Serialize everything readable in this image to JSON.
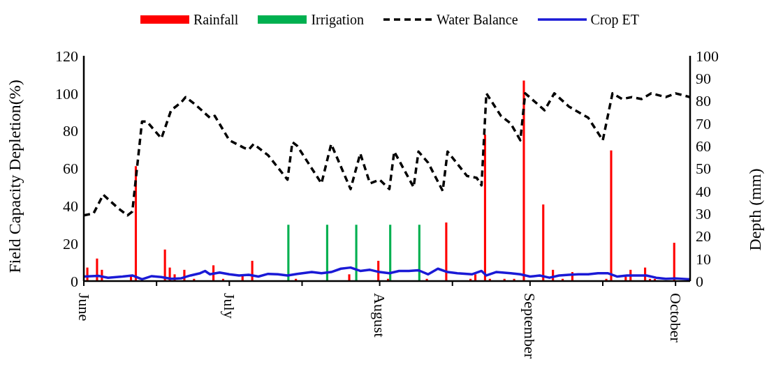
{
  "chart_data": {
    "type": "bar",
    "xlabel": null,
    "ylabel": "Field Capacity Depletion(%)",
    "y2label": "Depth (mm)",
    "xlim": [
      "--06-01",
      "--10-04"
    ],
    "xticks": [
      {
        "value": "--06-01",
        "label": "June"
      },
      {
        "value": "--06-16",
        "label": null
      },
      {
        "value": "--07-01",
        "label": "July"
      },
      {
        "value": "--07-16",
        "label": null
      },
      {
        "value": "--08-01",
        "label": "August"
      },
      {
        "value": "--08-16",
        "label": null
      },
      {
        "value": "--09-01",
        "label": "September"
      },
      {
        "value": "--09-16",
        "label": null
      },
      {
        "value": "--10-01",
        "label": "October"
      }
    ],
    "ylim": [
      0,
      120
    ],
    "yticks": [
      0,
      20,
      40,
      60,
      80,
      100,
      120
    ],
    "y2lim": [
      0,
      100
    ],
    "y2ticks": [
      0,
      10,
      20,
      30,
      40,
      50,
      60,
      70,
      80,
      90,
      100
    ],
    "grid": false,
    "legend": "top",
    "marker": "none",
    "series": [
      {
        "name": "Rainfall",
        "axis": "y2",
        "color": "#ff0000",
        "x": [
          "--06-02",
          "--06-04",
          "--06-05",
          "--06-11",
          "--06-12",
          "--06-14",
          "--06-18",
          "--06-19",
          "--06-20",
          "--06-21",
          "--06-22",
          "--06-24",
          "--06-28",
          "--06-30",
          "--07-04",
          "--07-06",
          "--07-15",
          "--07-26",
          "--08-01",
          "--08-03",
          "--08-11",
          "--08-15",
          "--08-20",
          "--08-21",
          "--08-23",
          "--08-24",
          "--08-27",
          "--08-29",
          "--08-31",
          "--09-04",
          "--09-06",
          "--09-08",
          "--09-10",
          "--09-17",
          "--09-18",
          "--09-21",
          "--09-22",
          "--09-25",
          "--09-26",
          "--09-27",
          "--09-28",
          "--10-01"
        ],
        "values": [
          6,
          10,
          5,
          2,
          51,
          null,
          14,
          6,
          3,
          null,
          5,
          1,
          7,
          1,
          3,
          9,
          1,
          3,
          9,
          1,
          1,
          26,
          1,
          3,
          65,
          1,
          1,
          1,
          89,
          34,
          5,
          1,
          4,
          1,
          58,
          2,
          5,
          6,
          1,
          1,
          null,
          17
        ]
      },
      {
        "name": "Irrigation",
        "axis": "y2",
        "color": "#00b050",
        "x": [
          "--07-13",
          "--07-21",
          "--07-27",
          "--08-03",
          "--08-09"
        ],
        "values": [
          25,
          25,
          25,
          25,
          25
        ]
      },
      {
        "name": "Water Balance",
        "type": "line",
        "axis": "y",
        "color": "#000000",
        "line_style": "dashed",
        "x": [
          "--06-01",
          "--06-03",
          "--06-05",
          "--06-08",
          "--06-10",
          "--06-11",
          "--06-13",
          "--06-14",
          "--06-17",
          "--06-19",
          "--06-21",
          "--06-22",
          "--06-24",
          "--06-27",
          "--06-28",
          "--07-01",
          "--07-04",
          "--07-05",
          "--07-06",
          "--07-09",
          "--07-13",
          "--07-14",
          "--07-15",
          "--07-20",
          "--07-22",
          "--07-26",
          "--07-28",
          "--07-30",
          "--08-01",
          "--08-03",
          "--08-04",
          "--08-08",
          "--08-09",
          "--08-11",
          "--08-14",
          "--08-15",
          "--08-19",
          "--08-21",
          "--08-22",
          "--08-23",
          "--08-26",
          "--08-28",
          "--08-30",
          "--08-31",
          "--09-04",
          "--09-06",
          "--09-09",
          "--09-13",
          "--09-16",
          "--09-18",
          "--09-20",
          "--09-22",
          "--09-24",
          "--09-26",
          "--09-29",
          "--10-01",
          "--10-04"
        ],
        "values": [
          35,
          36,
          46,
          39,
          35,
          37,
          85,
          85,
          76,
          91,
          95,
          98,
          94,
          87,
          88,
          75,
          71,
          70,
          73,
          67,
          54,
          74,
          72,
          52,
          73,
          49,
          68,
          52,
          54,
          49,
          69,
          50,
          69,
          63,
          48,
          69,
          56,
          55,
          51,
          100,
          88,
          84,
          75,
          100,
          91,
          100,
          93,
          87,
          75,
          100,
          97,
          98,
          97,
          100,
          98,
          100,
          98
        ]
      },
      {
        "name": "Crop ET",
        "type": "line",
        "axis": "y2",
        "color": "#1a1ad6",
        "line_style": "solid",
        "x": [
          "--06-01",
          "--06-04",
          "--06-06",
          "--06-09",
          "--06-11",
          "--06-13",
          "--06-15",
          "--06-17",
          "--06-19",
          "--06-21",
          "--06-23",
          "--06-25",
          "--06-26",
          "--06-27",
          "--06-29",
          "--07-01",
          "--07-03",
          "--07-05",
          "--07-07",
          "--07-09",
          "--07-11",
          "--07-13",
          "--07-15",
          "--07-18",
          "--07-20",
          "--07-22",
          "--07-24",
          "--07-26",
          "--07-28",
          "--07-30",
          "--08-01",
          "--08-03",
          "--08-05",
          "--08-07",
          "--08-09",
          "--08-11",
          "--08-13",
          "--08-15",
          "--08-17",
          "--08-20",
          "--08-22",
          "--08-23",
          "--08-25",
          "--08-28",
          "--08-30",
          "--09-01",
          "--09-03",
          "--09-05",
          "--09-07",
          "--09-09",
          "--09-11",
          "--09-13",
          "--09-15",
          "--09-17",
          "--09-19",
          "--09-21",
          "--09-23",
          "--09-25",
          "--09-27",
          "--09-29",
          "--10-01",
          "--10-04"
        ],
        "values": [
          2,
          2.3,
          1.5,
          2,
          2.5,
          0.8,
          2.2,
          1.8,
          1,
          1.2,
          2.5,
          3.5,
          4.5,
          3,
          3.8,
          3,
          2.5,
          2.8,
          2,
          3.2,
          3,
          2.5,
          3.2,
          4,
          3.5,
          4,
          5.5,
          6,
          4.5,
          5,
          4,
          3.5,
          4.5,
          4.5,
          4.8,
          3,
          5.5,
          4,
          3.5,
          3,
          4.5,
          2.5,
          4,
          3.5,
          3,
          2,
          2.5,
          1.5,
          2.5,
          2.8,
          3,
          3,
          3.5,
          3.5,
          2,
          2.5,
          2.5,
          2.5,
          1.5,
          1,
          1.2,
          0.8
        ]
      }
    ]
  }
}
